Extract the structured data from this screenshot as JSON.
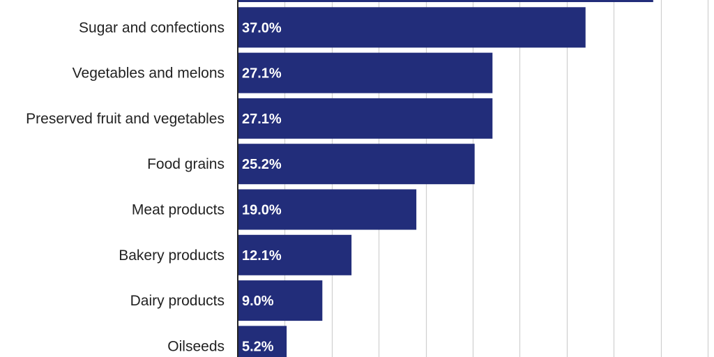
{
  "chart_data": {
    "type": "bar",
    "orientation": "horizontal",
    "categories": [
      "",
      "Sugar and confections",
      "Vegetables and melons",
      "Preserved fruit and vegetables",
      "Food grains",
      "Meat products",
      "Bakery products",
      "Dairy products",
      "Oilseeds"
    ],
    "values": [
      44.2,
      37.0,
      27.1,
      27.1,
      25.2,
      19.0,
      12.1,
      9.0,
      5.2
    ],
    "value_labels": [
      "",
      "37.0%",
      "27.1%",
      "27.1%",
      "25.2%",
      "19.0%",
      "12.1%",
      "9.0%",
      "5.2%"
    ],
    "xlim": [
      0,
      50
    ],
    "grid": true,
    "bar_color": "#222d7a",
    "grid_color": "#cfcfcf"
  }
}
